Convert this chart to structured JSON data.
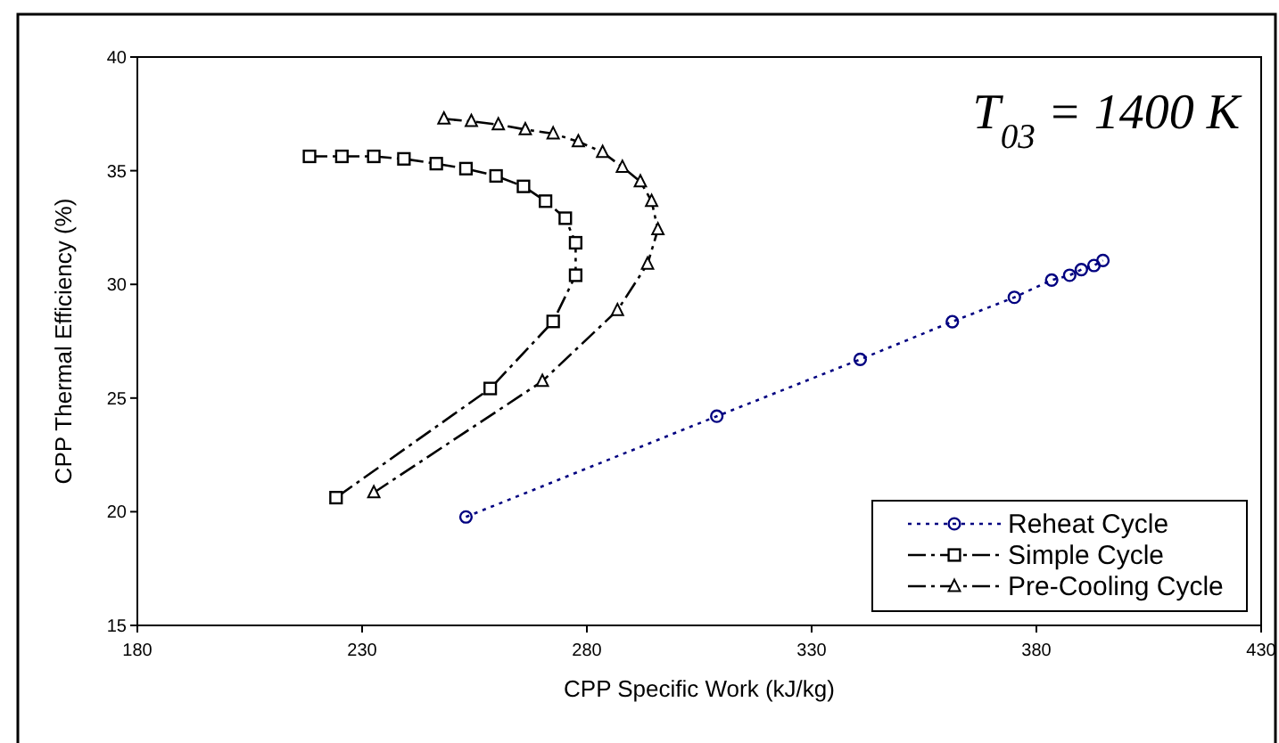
{
  "chart_data": {
    "type": "line",
    "xlabel": "CPP Specific Work (kJ/kg)",
    "ylabel": "CPP Thermal Efficiency (%)",
    "xlim": [
      180,
      430
    ],
    "xticks": [
      180,
      230,
      280,
      330,
      380,
      430
    ],
    "ylim": [
      15,
      40
    ],
    "yticks": [
      15,
      20,
      25,
      30,
      35,
      40
    ],
    "grid": false,
    "legend": "bottom right",
    "annotations": [
      "T$_{03}$ = 1400 K"
    ],
    "series": [
      {
        "name": "Reheat Cycle",
        "color": "#000080",
        "marker": "circle",
        "line_style": "dotted",
        "x": [
          253.1,
          308.9,
          340.8,
          361.3,
          375.1,
          383.4,
          387.4,
          390.0,
          392.8,
          394.8
        ],
        "values": [
          19.77,
          24.2,
          26.7,
          28.36,
          29.43,
          30.19,
          30.4,
          30.65,
          30.83,
          31.05
        ]
      },
      {
        "name": "Simple Cycle",
        "color": "#000000",
        "marker": "square",
        "line_style": "dashed",
        "x": [
          218.3,
          225.5,
          232.6,
          239.3,
          246.5,
          253.1,
          259.8,
          265.9,
          270.8,
          275.2,
          277.5,
          277.5,
          272.5,
          258.5,
          224.2
        ],
        "values": [
          35.63,
          35.63,
          35.63,
          35.52,
          35.31,
          35.09,
          34.77,
          34.31,
          33.66,
          32.91,
          31.83,
          30.4,
          28.37,
          25.42,
          20.62
        ]
      },
      {
        "name": "Pre-Cooling Cycle",
        "color": "#000000",
        "marker": "triangle",
        "line_style": "dashed",
        "x": [
          248.2,
          254.3,
          260.3,
          266.3,
          272.5,
          278.1,
          283.5,
          287.9,
          291.9,
          294.4,
          295.8,
          293.5,
          286.8,
          270.1,
          232.6
        ],
        "values": [
          37.28,
          37.17,
          37.03,
          36.81,
          36.63,
          36.28,
          35.81,
          35.16,
          34.52,
          33.66,
          32.41,
          30.9,
          28.86,
          25.74,
          20.84
        ]
      }
    ]
  }
}
